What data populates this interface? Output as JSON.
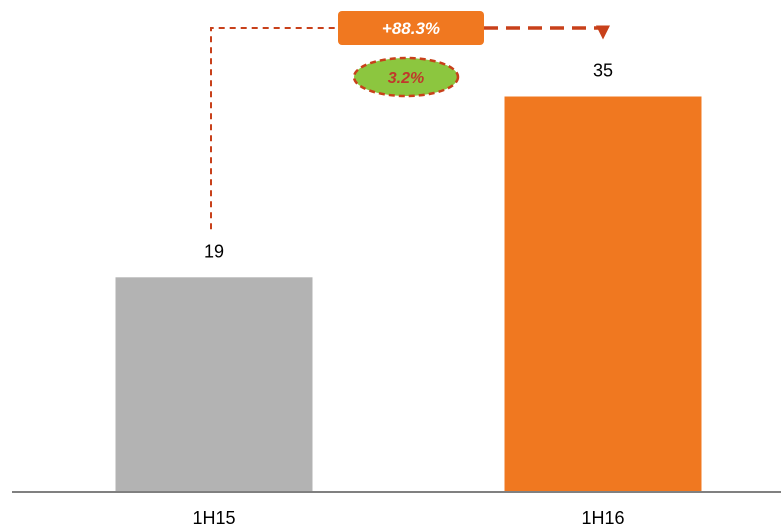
{
  "chart_data": {
    "type": "bar",
    "categories": [
      "1H15",
      "1H16"
    ],
    "values": [
      19,
      35
    ],
    "value_labels": [
      "19",
      "35"
    ],
    "ylim": [
      0,
      40
    ],
    "grid": false,
    "colors": {
      "bar_1": "#b3b3b3",
      "bar_2": "#f07820",
      "connector": "#c8401a",
      "growth_box": "#f07820",
      "cagr_fill": "#8cc63f"
    },
    "annotations": {
      "growth": "+88.3%",
      "cagr": "3.2%"
    }
  }
}
